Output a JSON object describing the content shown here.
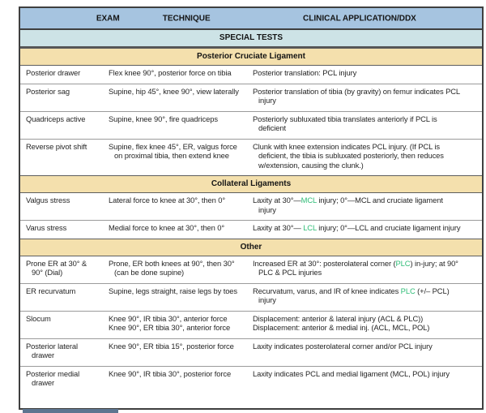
{
  "colors": {
    "header_bg": "#a6c4e0",
    "banner_bg": "#cde3e6",
    "section_bg": "#f4e0ad",
    "green": "#2fbd77",
    "bottom_bar": "#5d7590"
  },
  "table": {
    "columns": [
      {
        "label": "EXAM"
      },
      {
        "label": "TECHNIQUE"
      },
      {
        "label": "CLINICAL APPLICATION/DDX"
      }
    ],
    "banner": "SPECIAL TESTS",
    "sections": [
      {
        "title": "Posterior Cruciate Ligament",
        "rows": [
          {
            "exam": "Posterior drawer",
            "technique": [
              [
                {
                  "t": "Flex knee 90°, posterior force on tibia"
                }
              ]
            ],
            "clinical": [
              [
                {
                  "t": "Posterior translation: PCL injury"
                }
              ]
            ]
          },
          {
            "exam": "Posterior sag",
            "technique": [
              [
                {
                  "t": "Supine, hip 45°, knee 90°, view laterally"
                }
              ]
            ],
            "clinical": [
              [
                {
                  "t": "Posterior translation of tibia (by gravity) on femur indicates PCL injury"
                }
              ]
            ]
          },
          {
            "exam": "Quadriceps active",
            "technique": [
              [
                {
                  "t": "Supine, knee 90°, fire quadriceps"
                }
              ]
            ],
            "clinical": [
              [
                {
                  "t": "Posteriorly subluxated tibia translates anteriorly if PCL is deficient"
                }
              ]
            ]
          },
          {
            "exam": "Reverse pivot shift",
            "technique": [
              [
                {
                  "t": "Supine, flex knee 45°, ER, valgus force on proximal tibia, then extend knee"
                }
              ]
            ],
            "clinical": [
              [
                {
                  "t": "Clunk with knee extension indicates PCL injury. (If PCL is deficient, the tibia is subluxated posteriorly, then reduces w/extension, causing the clunk.)"
                }
              ]
            ]
          }
        ]
      },
      {
        "title": "Collateral Ligaments",
        "rows": [
          {
            "exam": "Valgus stress",
            "technique": [
              [
                {
                  "t": "Lateral force to knee at 30°, then 0°"
                }
              ]
            ],
            "clinical": [
              [
                {
                  "t": "Laxity at 30°—"
                },
                {
                  "t": "MCL",
                  "g": true
                },
                {
                  "t": " injury; 0°—MCL and cruciate ligament injury"
                }
              ]
            ]
          },
          {
            "exam": "Varus stress",
            "technique": [
              [
                {
                  "t": "Medial force to knee at 30°, then 0°"
                }
              ]
            ],
            "clinical": [
              [
                {
                  "t": "Laxity at 30°— "
                },
                {
                  "t": "LCL",
                  "g": true
                },
                {
                  "t": " injury; 0°—LCL and cruciate ligament injury"
                }
              ]
            ]
          }
        ]
      },
      {
        "title": "Other",
        "rows": [
          {
            "exam": "Prone ER at 30° & 90° (Dial)",
            "technique": [
              [
                {
                  "t": "Prone, ER both knees at 90°, then 30° (can be done supine)"
                }
              ]
            ],
            "clinical": [
              [
                {
                  "t": "Increased ER at 30°: posterolateral corner ("
                },
                {
                  "t": "PLC",
                  "g": true
                },
                {
                  "t": ") in-jury; at 90° PLC & PCL injuries"
                }
              ]
            ]
          },
          {
            "exam": "ER recurvatum",
            "technique": [
              [
                {
                  "t": "Supine, legs straight, raise legs by toes"
                }
              ]
            ],
            "clinical": [
              [
                {
                  "t": "Recurvatum, varus, and IR of knee indicates "
                },
                {
                  "t": "PLC",
                  "g": true
                },
                {
                  "t": " (+/– PCL) injury"
                }
              ]
            ]
          },
          {
            "exam": "Slocum",
            "technique": [
              [
                {
                  "t": "Knee 90°, IR tibia 30°, anterior force"
                }
              ],
              [
                {
                  "t": "Knee 90°, ER tibia 30°, anterior force"
                }
              ]
            ],
            "clinical": [
              [
                {
                  "t": "Displacement: anterior & lateral injury (ACL & PLC))"
                }
              ],
              [
                {
                  "t": "Displacement: anterior & medial inj. (ACL, MCL, POL)"
                }
              ]
            ]
          },
          {
            "exam": "Posterior lateral drawer",
            "technique": [
              [
                {
                  "t": "Knee 90°, ER tibia 15°, posterior force"
                }
              ]
            ],
            "clinical": [
              [
                {
                  "t": "Laxity indicates posterolateral corner and/or PCL injury"
                }
              ]
            ]
          },
          {
            "exam": "Posterior medial drawer",
            "technique": [
              [
                {
                  "t": "Knee 90°, IR tibia 30°, posterior force"
                }
              ]
            ],
            "clinical": [
              [
                {
                  "t": "Laxity indicates PCL and medial ligament (MCL, POL) injury"
                }
              ]
            ]
          }
        ]
      }
    ]
  },
  "next_table_edge": {
    "visible": true
  }
}
